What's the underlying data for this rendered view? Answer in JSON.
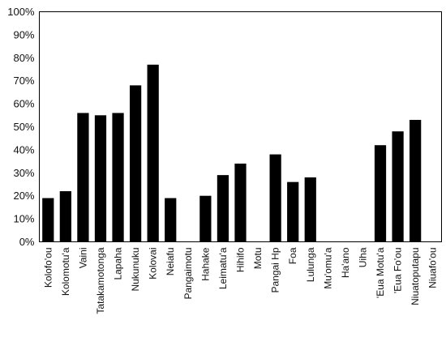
{
  "chart_data": {
    "type": "bar",
    "title": "",
    "xlabel": "",
    "ylabel": "",
    "ylim": [
      0,
      1
    ],
    "y_tick_format": "percent",
    "y_ticks": [
      "0%",
      "10%",
      "20%",
      "30%",
      "40%",
      "50%",
      "60%",
      "70%",
      "80%",
      "90%",
      "100%"
    ],
    "grid": false,
    "legend": "none",
    "categories": [
      "Kolofo'ou",
      "Kolomotu'a",
      "Vaini",
      "Tatakamotonga",
      "Lapaha",
      "Nukunuku",
      "Kolovai",
      "Neiafu",
      "Pangaimotu",
      "Hahake",
      "Leimatu'a",
      "Hihifo",
      "Motu",
      "Pangai Hp",
      "Foa",
      "Lulunga",
      "Mu'omu'a",
      "Ha'ano",
      "Uiha",
      "'Eua Motu'a",
      "'Eua Fo'ou",
      "Niuatoputapu",
      "Niuafo'ou"
    ],
    "values": [
      0.19,
      0.22,
      0.56,
      0.55,
      0.56,
      0.68,
      0.77,
      0.19,
      null,
      0.2,
      0.29,
      0.34,
      null,
      0.38,
      0.26,
      0.28,
      null,
      null,
      null,
      0.42,
      0.48,
      0.53,
      null
    ],
    "bar_color": "#000000"
  }
}
